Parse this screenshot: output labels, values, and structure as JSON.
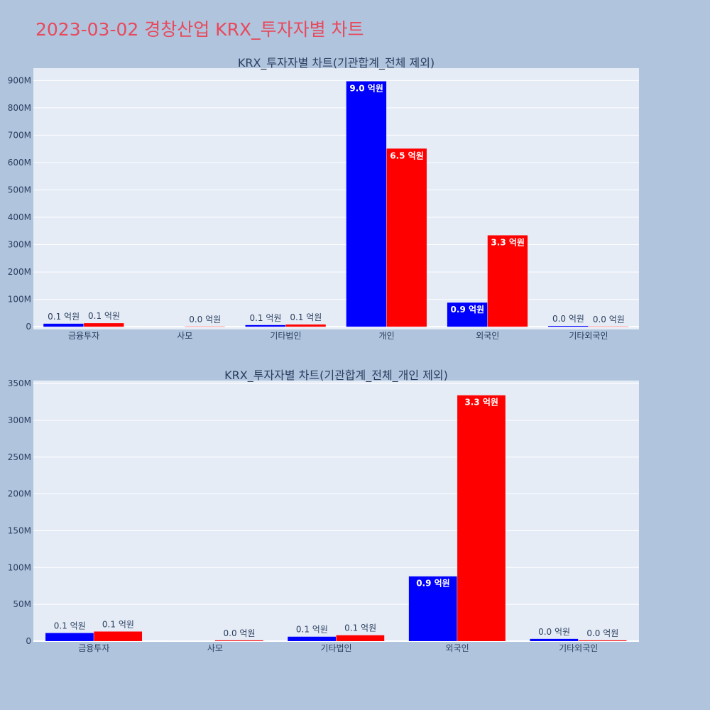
{
  "page": {
    "title": "2023-03-02 경창산업 KRX_투자자별 차트"
  },
  "chart_data": [
    {
      "type": "bar",
      "title": "KRX_투자자별 차트(기관합계_전체 제외)",
      "categories": [
        "금융투자",
        "사모",
        "기타법인",
        "개인",
        "외국인",
        "기타외국인"
      ],
      "yticks": [
        0,
        100000000,
        200000000,
        300000000,
        400000000,
        500000000,
        600000000,
        700000000,
        800000000,
        900000000
      ],
      "ytick_labels": [
        "0",
        "100M",
        "200M",
        "300M",
        "400M",
        "500M",
        "600M",
        "700M",
        "800M",
        "900M"
      ],
      "ylim": [
        -10000000,
        945000000
      ],
      "series": [
        {
          "color": "#0000ff",
          "values": [
            11000000,
            0,
            6000000,
            897000000,
            88000000,
            3000000
          ],
          "labels": [
            "0.1 억원",
            "",
            "0.1 억원",
            "9.0 억원",
            "0.9 억원",
            "0.0 억원"
          ]
        },
        {
          "color": "#ff0000",
          "values": [
            13000000,
            1000000,
            8000000,
            651000000,
            334000000,
            1000000
          ],
          "labels": [
            "0.1 억원",
            "0.0 억원",
            "0.1 억원",
            "6.5 억원",
            "3.3 억원",
            "0.0 억원"
          ]
        }
      ],
      "grid": true,
      "colors": {
        "plot_bg": "#e5ecf6",
        "grid": "#ffffff"
      }
    },
    {
      "type": "bar",
      "title": "KRX_투자자별 차트(기관합계_전체_개인 제외)",
      "categories": [
        "금융투자",
        "사모",
        "기타법인",
        "외국인",
        "기타외국인"
      ],
      "yticks": [
        0,
        50000000,
        100000000,
        150000000,
        200000000,
        250000000,
        300000000,
        350000000
      ],
      "ytick_labels": [
        "0",
        "50M",
        "100M",
        "150M",
        "200M",
        "250M",
        "300M",
        "350M"
      ],
      "ylim": [
        -1000000,
        354000000
      ],
      "series": [
        {
          "color": "#0000ff",
          "values": [
            11000000,
            0,
            6000000,
            88000000,
            3000000
          ],
          "labels": [
            "0.1 억원",
            "",
            "0.1 억원",
            "0.9 억원",
            "0.0 억원"
          ]
        },
        {
          "color": "#ff0000",
          "values": [
            13000000,
            1000000,
            8000000,
            334000000,
            1000000
          ],
          "labels": [
            "0.1 억원",
            "0.0 억원",
            "0.1 억원",
            "3.3 억원",
            "0.0 억원"
          ]
        }
      ],
      "grid": true,
      "colors": {
        "plot_bg": "#e5ecf6",
        "grid": "#ffffff"
      }
    }
  ]
}
